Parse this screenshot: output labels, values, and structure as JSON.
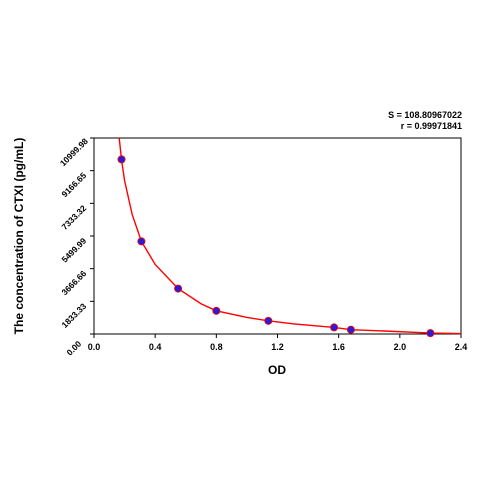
{
  "chart_data": {
    "type": "scatter",
    "xlabel": "OD",
    "ylabel": "The concentration of CTXI (pg/mL)",
    "xlim": [
      0,
      2.4
    ],
    "ylim": [
      0,
      10999.98
    ],
    "x_ticks": [
      "0.0",
      "0.4",
      "0.8",
      "1.2",
      "1.6",
      "2.0",
      "2.4"
    ],
    "y_ticks": [
      "0.00",
      "1833.33",
      "3666.66",
      "5499.99",
      "7333.32",
      "9166.65",
      "10999.98"
    ],
    "annotations": {
      "s_text": "S = 108.80967022",
      "r_text": "r = 0.99971841"
    },
    "points": {
      "x": [
        0.18,
        0.31,
        0.55,
        0.8,
        1.14,
        1.57,
        1.68,
        2.2
      ],
      "y": [
        9800,
        5200,
        2550,
        1300,
        740,
        370,
        240,
        50
      ]
    },
    "fit_curve": {
      "x": [
        0.165,
        0.18,
        0.2,
        0.25,
        0.31,
        0.4,
        0.55,
        0.7,
        0.8,
        1.0,
        1.14,
        1.3,
        1.57,
        1.68,
        1.9,
        2.2,
        2.4
      ],
      "y": [
        11000,
        9800,
        8600,
        6700,
        5200,
        3900,
        2550,
        1700,
        1300,
        930,
        740,
        570,
        370,
        240,
        170,
        50,
        20
      ]
    },
    "colors": {
      "curve": "#ff0000",
      "point_fill": "#2a1bd6",
      "point_edge": "#ff0000"
    }
  }
}
